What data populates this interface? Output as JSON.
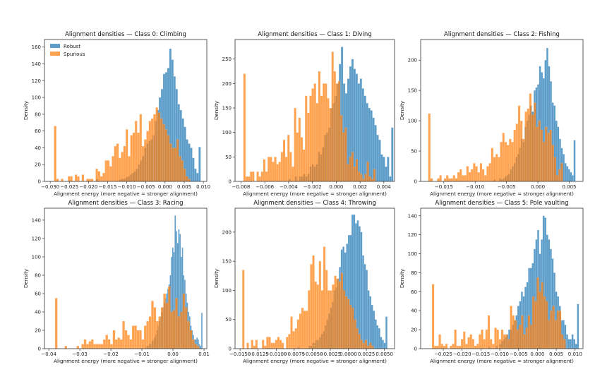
{
  "figure": {
    "colors": {
      "robust": "#1f77b4",
      "spurious": "#ff7f0e",
      "alpha": 0.72
    },
    "legend": {
      "placement": "upper-left",
      "shown_in": 0,
      "entries": [
        "Robust",
        "Spurious"
      ]
    }
  },
  "chart_data": [
    {
      "type": "histogram",
      "title": "Alignment densities — Class 0: Climbing",
      "xlabel": "Alignment energy (more negative = stronger alignment)",
      "ylabel": "Density",
      "xlim": [
        -0.0315,
        0.0109
      ],
      "ylim": [
        0,
        169
      ],
      "xticks": [
        -0.03,
        -0.025,
        -0.02,
        -0.015,
        -0.01,
        -0.005,
        0.0,
        0.005,
        0.01
      ],
      "xtick_labels": [
        "−0.030",
        "−0.025",
        "−0.020",
        "−0.015",
        "−0.010",
        "−0.005",
        "0.000",
        "0.005",
        "0.010"
      ],
      "yticks": [
        0,
        20,
        40,
        60,
        80,
        100,
        120,
        140,
        160
      ],
      "series": [
        {
          "name": "Robust",
          "range": [
            -0.018,
            0.0093
          ],
          "counts": [
            3,
            0,
            0,
            0,
            0,
            0,
            0,
            0,
            0,
            0,
            0,
            2,
            3,
            3,
            5,
            6,
            8,
            10,
            12,
            15,
            20,
            25,
            30,
            40,
            45,
            48,
            50,
            55,
            72,
            85,
            100,
            110,
            128,
            130,
            135,
            158,
            145,
            125,
            110,
            92,
            85,
            75,
            65,
            50,
            45,
            40,
            28,
            15,
            10,
            41
          ]
        },
        {
          "name": "Spurious",
          "range": [
            -0.029,
            0.0072
          ],
          "counts": [
            66,
            3,
            0,
            3,
            0,
            0,
            6,
            6,
            0,
            8,
            6,
            0,
            8,
            0,
            3,
            3,
            3,
            0,
            15,
            12,
            6,
            10,
            25,
            25,
            18,
            30,
            42,
            45,
            28,
            35,
            42,
            62,
            30,
            55,
            58,
            72,
            58,
            80,
            42,
            50,
            60,
            72,
            75,
            80,
            88,
            82,
            75,
            68,
            62,
            55,
            45,
            40,
            40,
            50,
            30,
            25,
            15,
            6,
            3,
            0
          ]
        }
      ]
    },
    {
      "type": "histogram",
      "title": "Alignment densities — Class 1: Diving",
      "xlabel": "Alignment energy (more negative = stronger alignment)",
      "ylabel": "Density",
      "xlim": [
        -0.0085,
        0.0049
      ],
      "ylim": [
        0,
        290
      ],
      "xticks": [
        -0.008,
        -0.006,
        -0.004,
        -0.002,
        0.0,
        0.002,
        0.004
      ],
      "xtick_labels": [
        "−0.008",
        "−0.006",
        "−0.004",
        "−0.002",
        "0.000",
        "0.002",
        "0.004"
      ],
      "yticks": [
        0,
        50,
        100,
        150,
        200,
        250
      ],
      "series": [
        {
          "name": "Robust",
          "range": [
            -0.004,
            0.0048
          ],
          "counts": [
            5,
            0,
            0,
            10,
            0,
            10,
            10,
            15,
            10,
            15,
            30,
            35,
            30,
            35,
            60,
            55,
            70,
            95,
            100,
            110,
            150,
            160,
            175,
            200,
            240,
            275,
            200,
            180,
            210,
            235,
            250,
            230,
            220,
            200,
            210,
            190,
            175,
            160,
            150,
            145,
            130,
            115,
            95,
            85,
            55,
            50,
            30,
            50,
            10,
            110
          ]
        },
        {
          "name": "Spurious",
          "range": [
            -0.0078,
            0.0033
          ],
          "counts": [
            220,
            10,
            10,
            20,
            20,
            0,
            20,
            10,
            20,
            45,
            20,
            50,
            50,
            40,
            50,
            35,
            40,
            60,
            85,
            50,
            95,
            60,
            30,
            150,
            100,
            130,
            90,
            65,
            175,
            140,
            175,
            190,
            200,
            160,
            225,
            175,
            200,
            200,
            170,
            150,
            265,
            225,
            200,
            205,
            135,
            100,
            110,
            35,
            50,
            60,
            30,
            45,
            20,
            15,
            5,
            15,
            40,
            10,
            5,
            25
          ]
        }
      ]
    },
    {
      "type": "histogram",
      "title": "Alignment densities — Class 2: Fishing",
      "xlabel": "Alignment energy (more negative = stronger alignment)",
      "ylabel": "Density",
      "xlim": [
        -0.0187,
        0.0072
      ],
      "ylim": [
        0,
        234
      ],
      "xticks": [
        -0.015,
        -0.01,
        -0.005,
        0.0,
        0.005
      ],
      "xtick_labels": [
        "−0.015",
        "−0.010",
        "−0.005",
        "0.000",
        "0.005"
      ],
      "yticks": [
        0,
        50,
        100,
        150,
        200
      ],
      "series": [
        {
          "name": "Robust",
          "range": [
            -0.0085,
            0.006
          ],
          "counts": [
            0,
            0,
            0,
            0,
            0,
            3,
            0,
            0,
            5,
            3,
            5,
            8,
            10,
            12,
            20,
            25,
            30,
            40,
            45,
            55,
            70,
            65,
            90,
            100,
            110,
            125,
            115,
            150,
            155,
            160,
            190,
            180,
            170,
            200,
            220,
            190,
            165,
            130,
            125,
            100,
            90,
            70,
            55,
            45,
            30,
            25,
            20,
            15,
            10,
            68
          ]
        },
        {
          "name": "Spurious",
          "range": [
            -0.0175,
            0.004
          ],
          "counts": [
            112,
            5,
            0,
            0,
            5,
            10,
            0,
            5,
            10,
            5,
            5,
            10,
            5,
            15,
            20,
            10,
            10,
            25,
            15,
            20,
            30,
            25,
            15,
            30,
            20,
            10,
            25,
            30,
            55,
            40,
            45,
            40,
            65,
            80,
            65,
            60,
            70,
            65,
            85,
            95,
            125,
            100,
            70,
            115,
            120,
            145,
            110,
            130,
            90,
            100,
            85,
            65,
            90,
            80,
            85,
            60,
            40,
            10,
            20,
            30
          ]
        }
      ]
    },
    {
      "type": "histogram",
      "title": "Alignment densities — Class 3: Racing",
      "xlabel": "Alignment energy (more negative = stronger alignment)",
      "ylabel": "Density",
      "xlim": [
        -0.0414,
        0.0109
      ],
      "ylim": [
        0,
        153
      ],
      "xticks": [
        -0.04,
        -0.03,
        -0.02,
        -0.01,
        0.0,
        0.01
      ],
      "xtick_labels": [
        "−0.04",
        "−0.03",
        "−0.02",
        "−0.01",
        "0.00",
        "0.01"
      ],
      "yticks": [
        0,
        20,
        40,
        60,
        80,
        100,
        120,
        140
      ],
      "series": [
        {
          "name": "Robust",
          "range": [
            -0.01,
            0.0095
          ],
          "counts": [
            0,
            0,
            0,
            2,
            3,
            3,
            5,
            5,
            8,
            10,
            12,
            15,
            20,
            25,
            30,
            35,
            40,
            45,
            50,
            55,
            60,
            65,
            70,
            80,
            100,
            110,
            105,
            145,
            128,
            115,
            130,
            125,
            100,
            110,
            80,
            75,
            60,
            50,
            40,
            35,
            25,
            20,
            15,
            10,
            10,
            12,
            10,
            5,
            3,
            39
          ]
        },
        {
          "name": "Spurious",
          "range": [
            -0.038,
            0.0085
          ],
          "counts": [
            55,
            0,
            0,
            0,
            3,
            0,
            0,
            0,
            0,
            3,
            0,
            5,
            10,
            5,
            8,
            10,
            5,
            5,
            5,
            5,
            10,
            15,
            10,
            5,
            20,
            10,
            12,
            10,
            30,
            20,
            15,
            10,
            25,
            25,
            20,
            20,
            10,
            25,
            30,
            35,
            52,
            45,
            30,
            35,
            45,
            60,
            50,
            68,
            40,
            42,
            55,
            35,
            40,
            60,
            45,
            30,
            20,
            10,
            5,
            3
          ]
        }
      ]
    },
    {
      "type": "histogram",
      "title": "Alignment densities — Class 4: Throwing",
      "xlabel": "Alignment energy (more negative = stronger alignment)",
      "ylabel": "Density",
      "xlim": [
        -0.0157,
        0.0064
      ],
      "ylim": [
        0,
        241
      ],
      "xticks": [
        -0.015,
        -0.0125,
        -0.01,
        -0.0075,
        -0.005,
        -0.0025,
        0.0,
        0.0025,
        0.005
      ],
      "xtick_labels": [
        "−0.0150",
        "−0.0125",
        "−0.0100",
        "−0.0075",
        "−0.0050",
        "−0.0025",
        "0.0000",
        "0.0025",
        "0.0050"
      ],
      "yticks": [
        0,
        50,
        100,
        150,
        200
      ],
      "series": [
        {
          "name": "Robust",
          "range": [
            -0.007,
            0.0054
          ],
          "counts": [
            3,
            0,
            0,
            0,
            0,
            0,
            5,
            5,
            10,
            10,
            15,
            15,
            20,
            25,
            30,
            40,
            50,
            60,
            70,
            80,
            100,
            105,
            120,
            140,
            170,
            175,
            165,
            180,
            195,
            195,
            230,
            230,
            215,
            220,
            210,
            200,
            160,
            145,
            135,
            100,
            90,
            75,
            65,
            50,
            40,
            35,
            20,
            15,
            10,
            55
          ]
        },
        {
          "name": "Spurious",
          "range": [
            -0.0147,
            0.0035
          ],
          "counts": [
            135,
            0,
            10,
            0,
            15,
            5,
            15,
            0,
            0,
            15,
            5,
            20,
            20,
            10,
            10,
            15,
            20,
            15,
            10,
            0,
            20,
            25,
            55,
            30,
            35,
            50,
            60,
            70,
            65,
            65,
            100,
            145,
            160,
            115,
            110,
            150,
            100,
            175,
            135,
            100,
            100,
            110,
            125,
            120,
            115,
            130,
            100,
            90,
            85,
            75,
            70,
            50,
            35,
            25,
            15,
            10,
            15,
            5,
            10,
            5
          ]
        }
      ]
    },
    {
      "type": "histogram",
      "title": "Alignment densities — Class 5: Pole vaulting",
      "xlabel": "Alignment energy (more negative = stronger alignment)",
      "ylabel": "Density",
      "xlim": [
        -0.031,
        0.0121
      ],
      "ylim": [
        0,
        148
      ],
      "xticks": [
        -0.025,
        -0.02,
        -0.015,
        -0.01,
        -0.005,
        0.0,
        0.005,
        0.01
      ],
      "xtick_labels": [
        "−0.025",
        "−0.020",
        "−0.015",
        "−0.010",
        "−0.005",
        "0.000",
        "0.005",
        "0.010"
      ],
      "yticks": [
        0,
        20,
        40,
        60,
        80,
        100,
        120,
        140
      ],
      "series": [
        {
          "name": "Robust",
          "range": [
            -0.013,
            0.011
          ],
          "counts": [
            2,
            0,
            0,
            0,
            3,
            0,
            5,
            8,
            10,
            12,
            15,
            20,
            20,
            25,
            30,
            35,
            45,
            50,
            60,
            55,
            65,
            70,
            85,
            85,
            90,
            105,
            115,
            125,
            100,
            115,
            140,
            138,
            120,
            115,
            105,
            95,
            80,
            60,
            55,
            45,
            30,
            30,
            25,
            15,
            10,
            10,
            15,
            10,
            5,
            47
          ]
        },
        {
          "name": "Spurious",
          "range": [
            -0.028,
            0.0075
          ],
          "counts": [
            68,
            3,
            3,
            15,
            5,
            3,
            5,
            0,
            3,
            5,
            20,
            3,
            3,
            10,
            18,
            5,
            12,
            15,
            10,
            3,
            5,
            15,
            20,
            10,
            20,
            35,
            10,
            5,
            22,
            20,
            10,
            20,
            15,
            15,
            10,
            45,
            35,
            30,
            20,
            25,
            35,
            15,
            22,
            35,
            25,
            55,
            50,
            75,
            60,
            70,
            55,
            50,
            30,
            40,
            45,
            30,
            40,
            40,
            15,
            10
          ]
        }
      ]
    }
  ]
}
